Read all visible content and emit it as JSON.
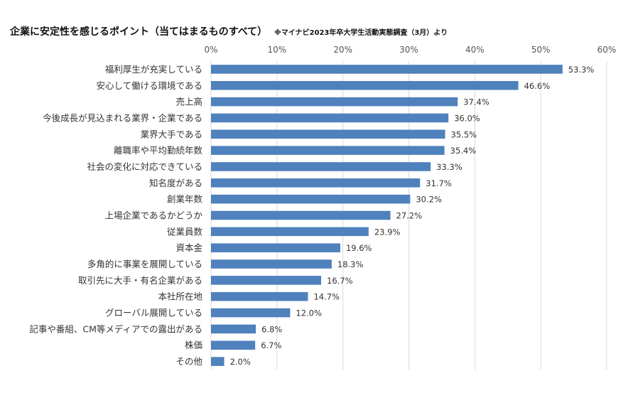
{
  "chart_data": {
    "type": "bar",
    "orientation": "horizontal",
    "title": "企業に安定性を感じるポイント（当てはまるものすべて）",
    "subtitle": "※マイナビ2023年卒大学生活動実態調査（3月）より",
    "xlim": [
      0,
      60
    ],
    "x_ticks": [
      "0%",
      "10%",
      "20%",
      "30%",
      "40%",
      "50%",
      "60%"
    ],
    "grid": true,
    "categories": [
      "福利厚生が充実している",
      "安心して働ける環境である",
      "売上高",
      "今後成長が見込まれる業界・企業である",
      "業界大手である",
      "離職率や平均勤続年数",
      "社会の変化に対応できている",
      "知名度がある",
      "創業年数",
      "上場企業であるかどうか",
      "従業員数",
      "資本金",
      "多角的に事業を展開している",
      "取引先に大手・有名企業がある",
      "本社所在地",
      "グローバル展開している",
      "記事や番組、CM等メディアでの露出がある",
      "株価",
      "その他"
    ],
    "values": [
      53.3,
      46.6,
      37.4,
      36.0,
      35.5,
      35.4,
      33.3,
      31.7,
      30.2,
      27.2,
      23.9,
      19.6,
      18.3,
      16.7,
      14.7,
      12.0,
      6.8,
      6.7,
      2.0
    ],
    "value_labels": [
      "53.3%",
      "46.6%",
      "37.4%",
      "36.0%",
      "35.5%",
      "35.4%",
      "33.3%",
      "31.7%",
      "30.2%",
      "27.2%",
      "23.9%",
      "19.6%",
      "18.3%",
      "16.7%",
      "14.7%",
      "12.0%",
      "6.8%",
      "6.7%",
      "2.0%"
    ],
    "bar_color": "#4f81bd"
  }
}
